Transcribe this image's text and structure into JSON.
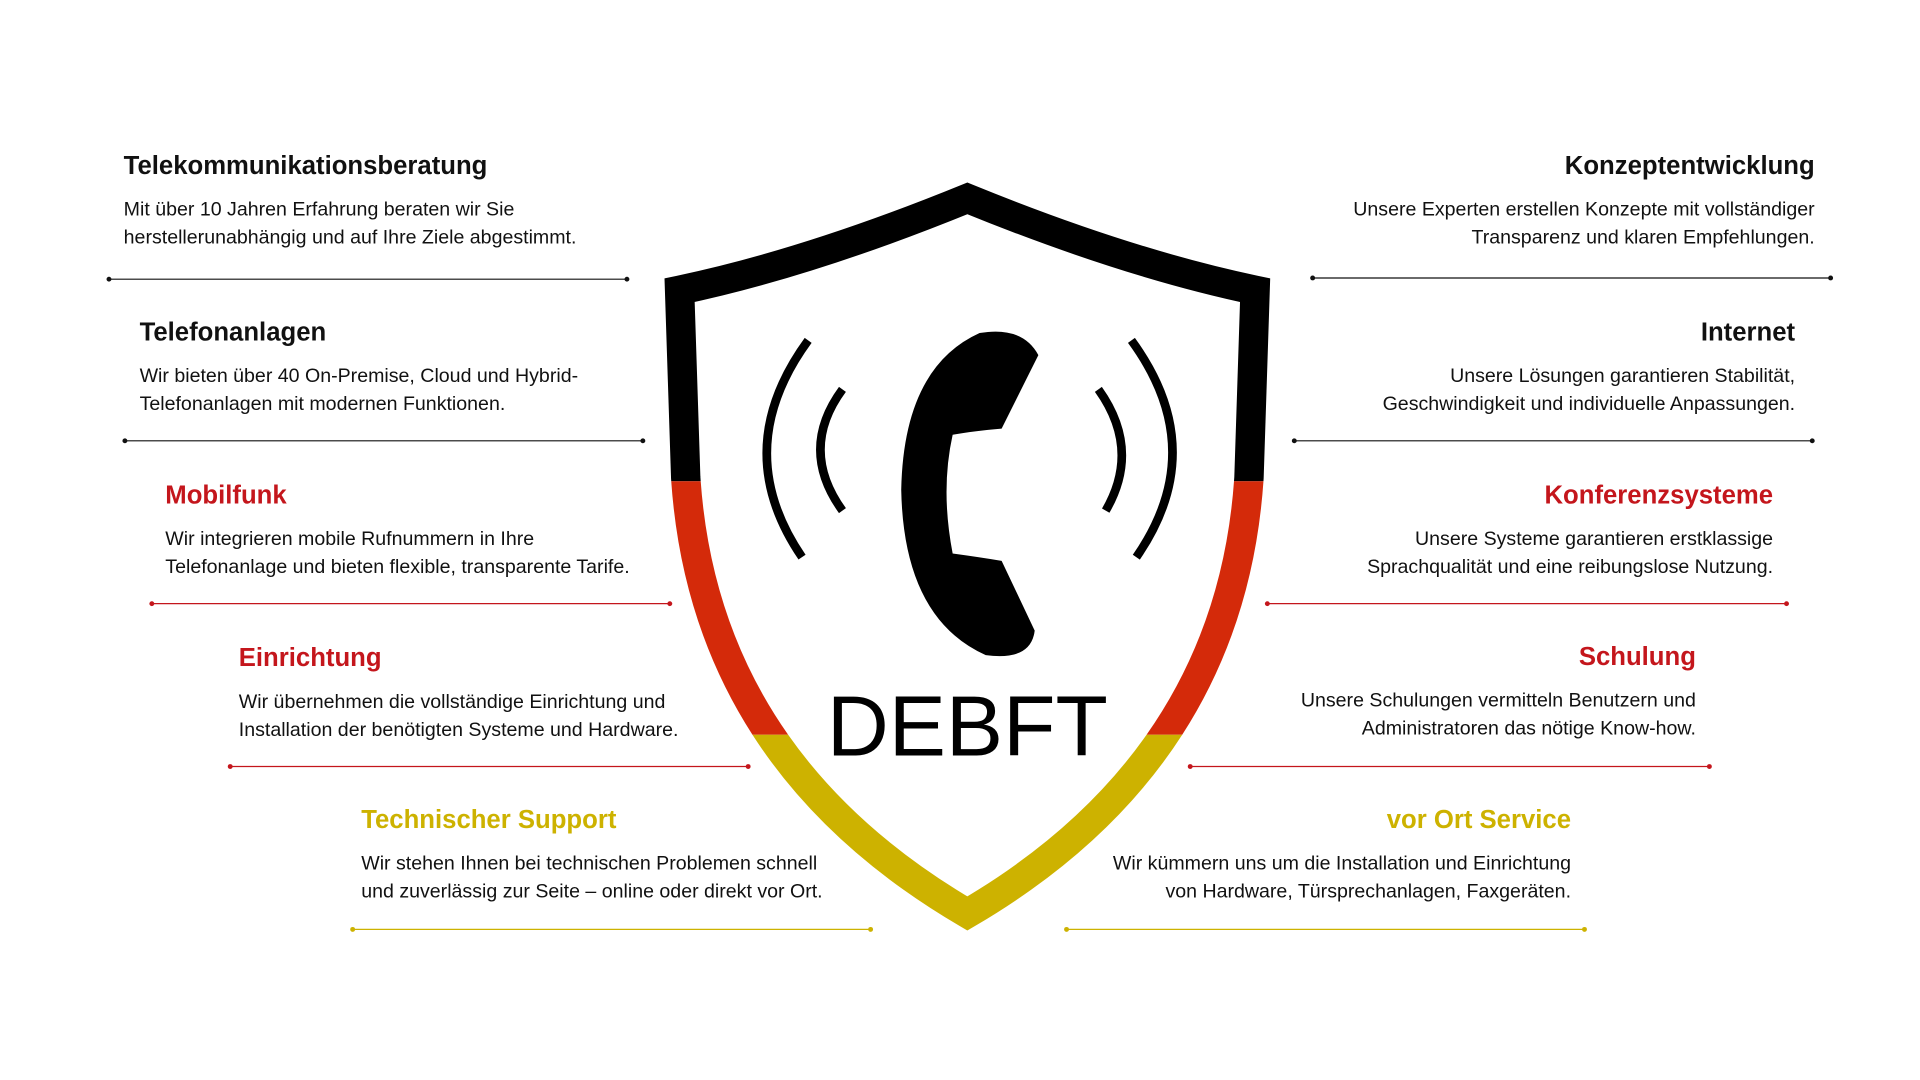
{
  "logo": "DEBFT",
  "left": [
    {
      "title": "Telekommunikationsberatung",
      "color": "#111111",
      "lines": [
        "Mit über 10 Jahren Erfahrung beraten wir Sie",
        "herstellerunabhängig und auf Ihre Ziele abgestimmt."
      ]
    },
    {
      "title": "Telefonanlagen",
      "color": "#111111",
      "lines": [
        "Wir bieten über 40 On-Premise, Cloud und Hybrid-",
        "Telefonanlagen mit modernen Funktionen."
      ]
    },
    {
      "title": "Mobilfunk",
      "color": "#c4161c",
      "lines": [
        "Wir integrieren mobile Rufnummern in Ihre",
        "Telefonanlage und bieten flexible, transparente Tarife."
      ]
    },
    {
      "title": "Einrichtung",
      "color": "#c4161c",
      "lines": [
        "Wir übernehmen die vollständige Einrichtung und",
        "Installation der benötigten Systeme und Hardware."
      ]
    },
    {
      "title": "Technischer Support",
      "color": "#cdb200",
      "lines": [
        "Wir stehen Ihnen bei technischen Problemen schnell",
        "und zuverlässig zur Seite – online oder direkt vor Ort."
      ]
    }
  ],
  "right": [
    {
      "title": "Konzeptentwicklung",
      "color": "#111111",
      "lines": [
        "Unsere Experten erstellen Konzepte mit vollständiger",
        "Transparenz und klaren Empfehlungen."
      ]
    },
    {
      "title": "Internet",
      "color": "#111111",
      "lines": [
        "Unsere Lösungen garantieren Stabilität,",
        "Geschwindigkeit und individuelle Anpassungen."
      ]
    },
    {
      "title": "Konferenzsysteme",
      "color": "#c4161c",
      "lines": [
        "Unsere Systeme garantieren erstklassige",
        "Sprachqualität und eine reibungslose Nutzung."
      ]
    },
    {
      "title": "Schulung",
      "color": "#c4161c",
      "lines": [
        "Unsere Schulungen vermitteln Benutzern und",
        "Administratoren das nötige Know-how."
      ]
    },
    {
      "title": "vor Ort Service",
      "color": "#cdb200",
      "lines": [
        "Wir kümmern uns um die Installation und Einrichtung",
        "von Hardware, Türsprechanlagen, Faxgeräten."
      ]
    }
  ]
}
